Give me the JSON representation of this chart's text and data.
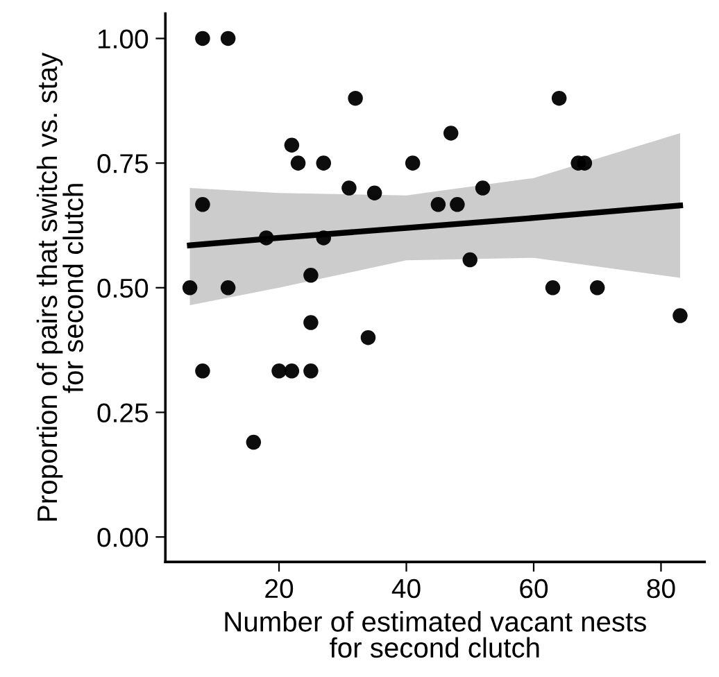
{
  "chart_data": {
    "type": "scatter",
    "xlabel": "Number of estimated vacant nests\nfor second clutch",
    "ylabel": "Proportion of pairs that switch vs. stay\nfor second clutch",
    "xlim": [
      2.15,
      86.85
    ],
    "ylim": [
      -0.05,
      1.05
    ],
    "xticks": [
      20,
      40,
      60,
      80
    ],
    "yticks": [
      {
        "value": 0,
        "label": "0.00"
      },
      {
        "value": 0.25,
        "label": "0.25"
      },
      {
        "value": 0.5,
        "label": "0.50"
      },
      {
        "value": 0.75,
        "label": "0.75"
      },
      {
        "value": 1,
        "label": "1.00"
      }
    ],
    "grid": false,
    "legend": false,
    "series": [
      {
        "type": "line",
        "color": "#000000",
        "x": [
          6,
          20,
          40,
          60,
          83
        ],
        "values": [
          0.585,
          0.6,
          0.62,
          0.64,
          0.665
        ],
        "lower": [
          0.465,
          0.5,
          0.555,
          0.56,
          0.52
        ],
        "upper": [
          0.7,
          0.69,
          0.685,
          0.72,
          0.81
        ]
      },
      {
        "marker": "circle",
        "color": "#000000",
        "x": [
          6,
          8,
          8,
          8,
          12,
          12,
          16,
          18,
          20,
          22,
          22,
          23,
          25,
          25,
          25,
          27,
          27,
          31,
          32,
          34,
          35,
          41,
          45,
          47,
          48,
          50,
          52,
          63,
          64,
          67,
          68,
          70,
          83
        ],
        "values": [
          0.5,
          1.0,
          0.667,
          0.333,
          1.0,
          0.5,
          0.19,
          0.6,
          0.333,
          0.333,
          0.786,
          0.75,
          0.333,
          0.43,
          0.525,
          0.75,
          0.6,
          0.7,
          0.88,
          0.4,
          0.69,
          0.75,
          0.667,
          0.81,
          0.667,
          0.556,
          0.7,
          0.5,
          0.88,
          0.75,
          0.75,
          0.5,
          0.444
        ]
      }
    ]
  }
}
